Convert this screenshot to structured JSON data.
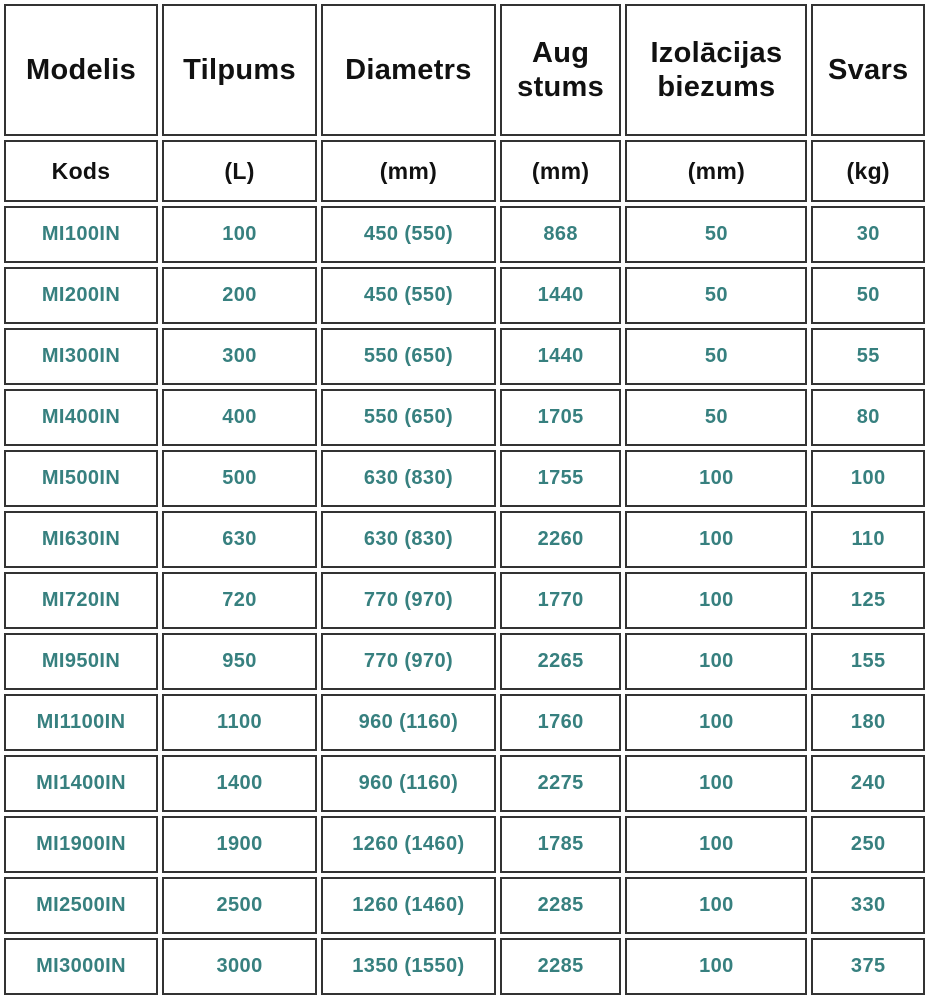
{
  "colors": {
    "data_text": "#37807f",
    "header_text": "#111111",
    "cell_border": "#333333",
    "background": "#ffffff"
  },
  "chart_data": {
    "type": "table",
    "title": "",
    "columns": [
      {
        "title": "Modelis",
        "subtitle": "Kods"
      },
      {
        "title": "Tilpums",
        "subtitle": "(L)"
      },
      {
        "title": "Diametrs",
        "subtitle": "(mm)"
      },
      {
        "title": "Aug stums",
        "subtitle": "(mm)"
      },
      {
        "title": "Izolācijas biezums",
        "subtitle": "(mm)"
      },
      {
        "title": "Svars",
        "subtitle": "(kg)"
      }
    ],
    "rows": [
      [
        "MI100IN",
        "100",
        "450 (550)",
        "868",
        "50",
        "30"
      ],
      [
        "MI200IN",
        "200",
        "450 (550)",
        "1440",
        "50",
        "50"
      ],
      [
        "MI300IN",
        "300",
        "550 (650)",
        "1440",
        "50",
        "55"
      ],
      [
        "MI400IN",
        "400",
        "550 (650)",
        "1705",
        "50",
        "80"
      ],
      [
        "MI500IN",
        "500",
        "630 (830)",
        "1755",
        "100",
        "100"
      ],
      [
        "MI630IN",
        "630",
        "630 (830)",
        "2260",
        "100",
        "110"
      ],
      [
        "MI720IN",
        "720",
        "770 (970)",
        "1770",
        "100",
        "125"
      ],
      [
        "MI950IN",
        "950",
        "770 (970)",
        "2265",
        "100",
        "155"
      ],
      [
        "MI1100IN",
        "1100",
        "960 (1160)",
        "1760",
        "100",
        "180"
      ],
      [
        "MI1400IN",
        "1400",
        "960 (1160)",
        "2275",
        "100",
        "240"
      ],
      [
        "MI1900IN",
        "1900",
        "1260 (1460)",
        "1785",
        "100",
        "250"
      ],
      [
        "MI2500IN",
        "2500",
        "1260 (1460)",
        "2285",
        "100",
        "330"
      ],
      [
        "MI3000IN",
        "3000",
        "1350 (1550)",
        "2285",
        "100",
        "375"
      ]
    ]
  }
}
